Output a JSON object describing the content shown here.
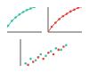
{
  "chart_data": [
    {
      "type": "line",
      "x": [
        0,
        1,
        2,
        3,
        4,
        5,
        6,
        7,
        8,
        9,
        10
      ],
      "series": [
        {
          "color": "#2ec4a6",
          "marker": "circle",
          "values": [
            0,
            2.2,
            3.8,
            5,
            6,
            6.8,
            7.5,
            8,
            8.5,
            8.9,
            9.2
          ]
        }
      ],
      "xlim": [
        0,
        10
      ],
      "ylim": [
        0,
        10
      ],
      "xticks": [
        0,
        5,
        10
      ],
      "yticks": [
        0,
        5,
        10
      ],
      "tick_labels": false
    },
    {
      "type": "line",
      "x": [
        0,
        1,
        2,
        3,
        4,
        5,
        6,
        7,
        8,
        9,
        10
      ],
      "series": [
        {
          "color": "#e8403a",
          "marker": "circle",
          "values": [
            0,
            1.8,
            3.2,
            4.4,
            5.4,
            6.2,
            7,
            7.6,
            8.2,
            8.7,
            9.1
          ]
        }
      ],
      "xlim": [
        0,
        10
      ],
      "ylim": [
        0,
        10
      ],
      "xticks": [
        0,
        5,
        10
      ],
      "yticks": [
        0,
        5,
        10
      ],
      "tick_labels": false
    },
    {
      "type": "scatter",
      "series": [
        {
          "color": "#2ec4a6",
          "marker": "circle",
          "x": [
            1,
            2,
            3,
            4,
            5,
            6,
            7,
            8,
            9
          ],
          "values": [
            2,
            3.5,
            3,
            5,
            4.5,
            6,
            7,
            6.5,
            8
          ]
        },
        {
          "color": "#e8403a",
          "marker": "circle",
          "x": [
            1.5,
            2.5,
            3.5,
            4.5,
            5.5,
            6.5,
            7.5,
            8.5
          ],
          "values": [
            1.5,
            2.5,
            4,
            3.5,
            5.5,
            5,
            6.5,
            7.5
          ]
        }
      ],
      "xlim": [
        0,
        10
      ],
      "ylim": [
        0,
        10
      ],
      "xticks": [
        0,
        5,
        10
      ],
      "yticks": [
        0,
        5,
        10
      ],
      "tick_labels": false
    }
  ]
}
